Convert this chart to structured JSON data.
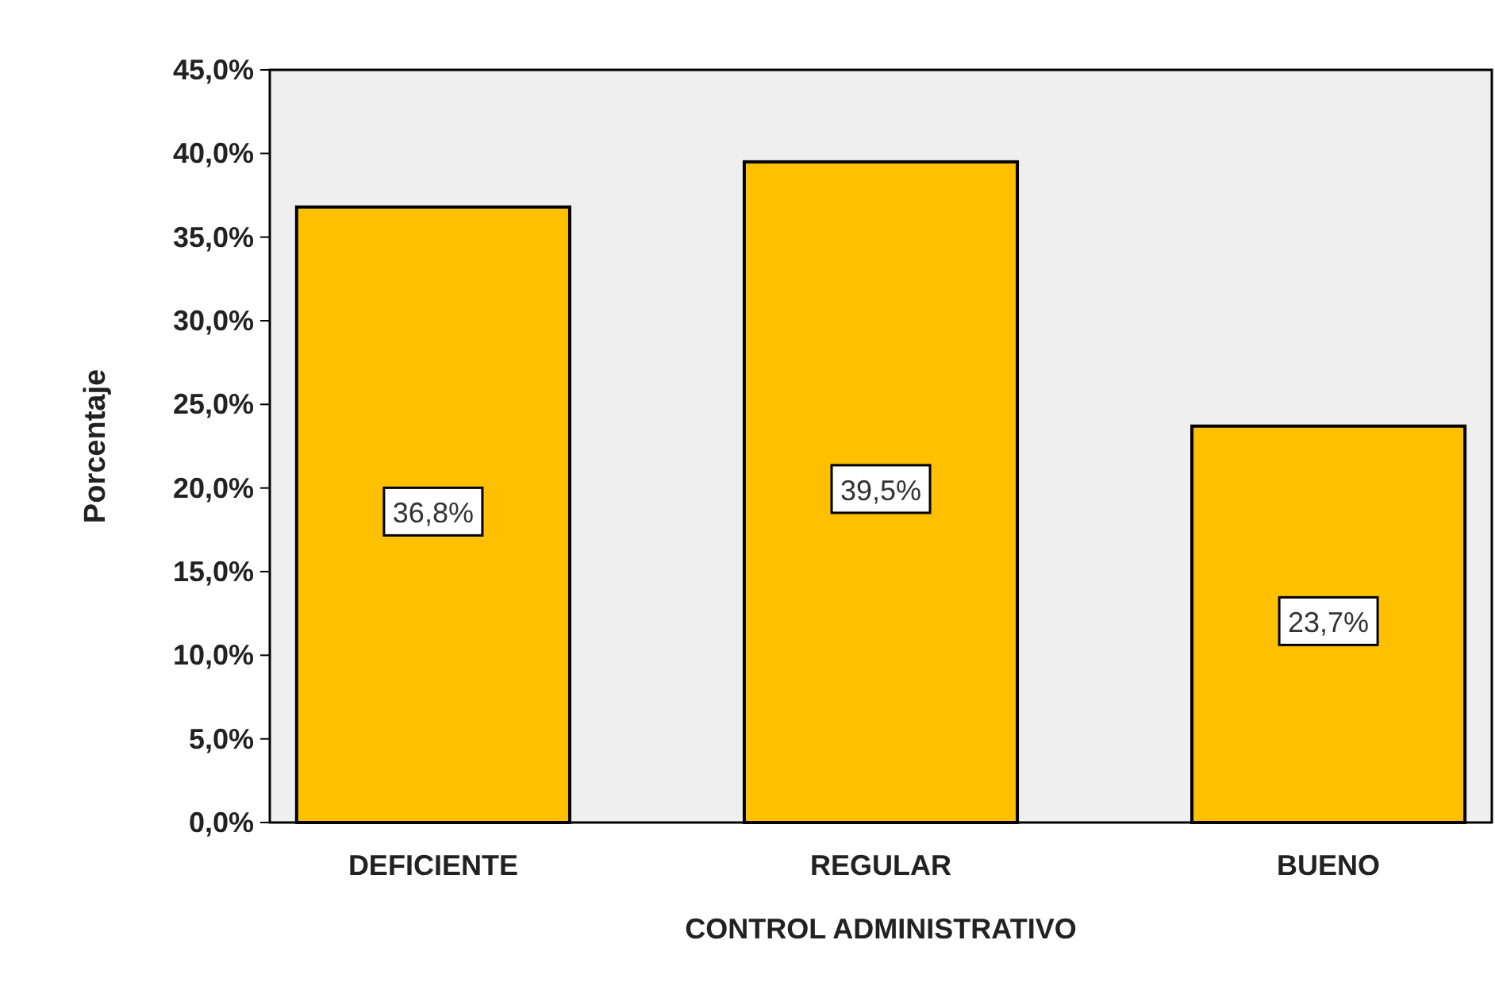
{
  "chart_data": {
    "type": "bar",
    "xlabel": "CONTROL ADMINISTRATIVO",
    "ylabel": "Porcentaje",
    "categories": [
      "DEFICIENTE",
      "REGULAR",
      "BUENO"
    ],
    "values": [
      36.8,
      39.5,
      23.7
    ],
    "color": "#ffc000",
    "value_labels": [
      "36,8%",
      "39,5%",
      "23,7%"
    ],
    "ylim": [
      0,
      45
    ],
    "yticks": [
      {
        "value": 0,
        "label": "0,0%"
      },
      {
        "value": 5,
        "label": "5,0%"
      },
      {
        "value": 10,
        "label": "10,0%"
      },
      {
        "value": 15,
        "label": "15,0%"
      },
      {
        "value": 20,
        "label": "20,0%"
      },
      {
        "value": 25,
        "label": "25,0%"
      },
      {
        "value": 30,
        "label": "30,0%"
      },
      {
        "value": 35,
        "label": "35,0%"
      },
      {
        "value": 40,
        "label": "40,0%"
      },
      {
        "value": 45,
        "label": "45,0%"
      }
    ],
    "grid": false
  }
}
